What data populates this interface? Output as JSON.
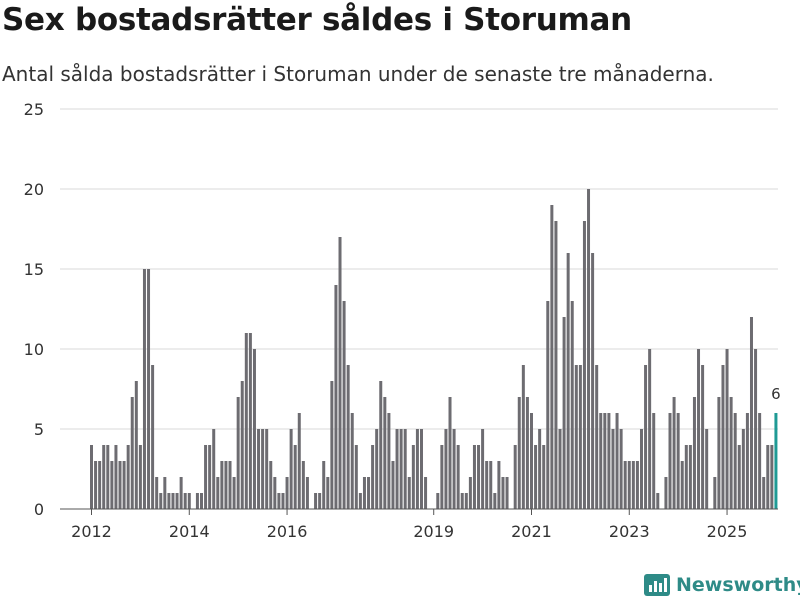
{
  "title": "Sex bostadsrätter såldes i Storuman",
  "subtitle": "Antal sålda bostadsrätter i Storuman under de senaste tre månaderna.",
  "logo": {
    "text": "Newsworthy",
    "icon": "newsworthy-logo-icon"
  },
  "colors": {
    "bar": "#6d6c71",
    "highlight": "#1f9a95",
    "grid": "#d9d9d9",
    "axis": "#888888",
    "brand": "#2e8b87"
  },
  "chart_data": {
    "type": "bar",
    "title": "Sex bostadsrätter såldes i Storuman",
    "xlabel": "",
    "ylabel": "",
    "ylim": [
      0,
      25
    ],
    "yticks": [
      0,
      5,
      10,
      15,
      20,
      25
    ],
    "start": {
      "year": 2012,
      "month": 1
    },
    "xtick_labels": [
      "2012",
      "2014",
      "2016",
      "2019",
      "2021",
      "2023",
      "2025"
    ],
    "xtick_months": [
      0,
      24,
      48,
      84,
      108,
      132,
      156
    ],
    "values": [
      4,
      3,
      3,
      4,
      4,
      3,
      4,
      3,
      3,
      4,
      7,
      8,
      4,
      15,
      15,
      9,
      2,
      1,
      2,
      1,
      1,
      1,
      2,
      1,
      1,
      0,
      1,
      1,
      4,
      4,
      5,
      2,
      3,
      3,
      3,
      2,
      7,
      8,
      11,
      11,
      10,
      5,
      5,
      5,
      3,
      2,
      1,
      1,
      2,
      5,
      4,
      6,
      3,
      2,
      0,
      1,
      1,
      3,
      2,
      8,
      14,
      17,
      13,
      9,
      6,
      4,
      1,
      2,
      2,
      4,
      5,
      8,
      7,
      6,
      3,
      5,
      5,
      5,
      2,
      4,
      5,
      5,
      2,
      0,
      0,
      1,
      4,
      5,
      7,
      5,
      4,
      1,
      1,
      2,
      4,
      4,
      5,
      3,
      3,
      1,
      3,
      2,
      2,
      0,
      4,
      7,
      9,
      7,
      6,
      4,
      5,
      4,
      13,
      19,
      18,
      5,
      12,
      16,
      13,
      9,
      9,
      18,
      20,
      16,
      9,
      6,
      6,
      6,
      5,
      6,
      5,
      3,
      3,
      3,
      3,
      5,
      9,
      10,
      6,
      1,
      0,
      2,
      6,
      7,
      6,
      3,
      4,
      4,
      7,
      10,
      9,
      5,
      0,
      2,
      7,
      9,
      10,
      7,
      6,
      4,
      5,
      6,
      12,
      10,
      6,
      2,
      4,
      4,
      6
    ],
    "highlight_last": true,
    "last_value_label": "6"
  }
}
